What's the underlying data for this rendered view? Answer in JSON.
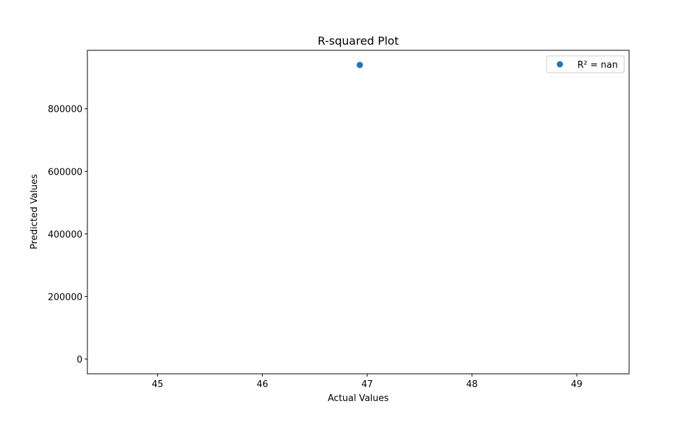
{
  "chart_data": {
    "type": "scatter",
    "title": "R-squared Plot",
    "xlabel": "Actual Values",
    "ylabel": "Predicted Values",
    "xlim": [
      44.33,
      49.5
    ],
    "ylim": [
      -47000,
      987000
    ],
    "x_ticks": [
      45,
      46,
      47,
      48,
      49
    ],
    "y_ticks": [
      0,
      200000,
      400000,
      600000,
      800000
    ],
    "x_tick_labels": [
      "45",
      "46",
      "47",
      "48",
      "49"
    ],
    "y_tick_labels": [
      "0",
      "200000",
      "400000",
      "600000",
      "800000"
    ],
    "series": [
      {
        "name": "R² = nan",
        "color": "#1f77b4",
        "points": [
          {
            "x": 46.93,
            "y": 940000
          }
        ]
      }
    ],
    "legend": {
      "position": "upper right",
      "entries": [
        "R² = nan"
      ]
    },
    "grid": false
  }
}
